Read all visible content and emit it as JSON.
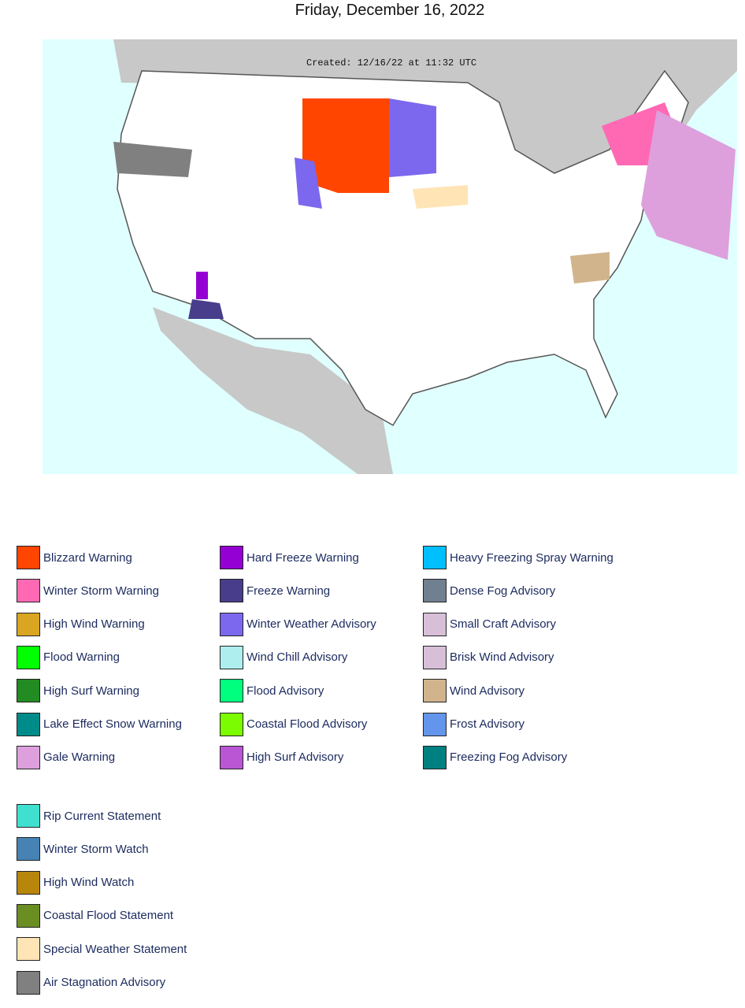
{
  "header": {
    "title": "Friday, December 16, 2022"
  },
  "map": {
    "created": "Created: 12/16/22 at 11:32 UTC"
  },
  "legend": {
    "main": [
      {
        "name": "Blizzard Warning",
        "color": "#ff4500"
      },
      {
        "name": "Winter Storm Warning",
        "color": "#ff69b4"
      },
      {
        "name": "High Wind Warning",
        "color": "#daa520"
      },
      {
        "name": "Flood Warning",
        "color": "#00ff00"
      },
      {
        "name": "High Surf Warning",
        "color": "#228b22"
      },
      {
        "name": "Lake Effect Snow Warning",
        "color": "#008b8b"
      },
      {
        "name": "Gale Warning",
        "color": "#dda0dd"
      },
      {
        "name": "Hard Freeze Warning",
        "color": "#9400d3"
      },
      {
        "name": "Freeze Warning",
        "color": "#483d8b"
      },
      {
        "name": "Winter Weather Advisory",
        "color": "#7b68ee"
      },
      {
        "name": "Wind Chill Advisory",
        "color": "#afeeee"
      },
      {
        "name": "Flood Advisory",
        "color": "#00ff7f"
      },
      {
        "name": "Coastal Flood Advisory",
        "color": "#7cfc00"
      },
      {
        "name": "High Surf Advisory",
        "color": "#ba55d3"
      },
      {
        "name": "Heavy Freezing Spray Warning",
        "color": "#00bfff"
      },
      {
        "name": "Dense Fog Advisory",
        "color": "#708090"
      },
      {
        "name": "Small Craft Advisory",
        "color": "#d8bfd8"
      },
      {
        "name": "Brisk Wind Advisory",
        "color": "#d8bfd8"
      },
      {
        "name": "Wind Advisory",
        "color": "#d2b48c"
      },
      {
        "name": "Frost Advisory",
        "color": "#6495ed"
      },
      {
        "name": "Freezing Fog Advisory",
        "color": "#008080"
      }
    ],
    "extra": [
      {
        "name": "Rip Current Statement",
        "color": "#40e0d0"
      },
      {
        "name": "Winter Storm Watch",
        "color": "#4682b4"
      },
      {
        "name": "High Wind Watch",
        "color": "#b8860b"
      },
      {
        "name": "Coastal Flood Statement",
        "color": "#6b8e23"
      },
      {
        "name": "Special Weather Statement",
        "color": "#ffe4b5"
      },
      {
        "name": "Air Stagnation Advisory",
        "color": "#808080"
      }
    ]
  }
}
